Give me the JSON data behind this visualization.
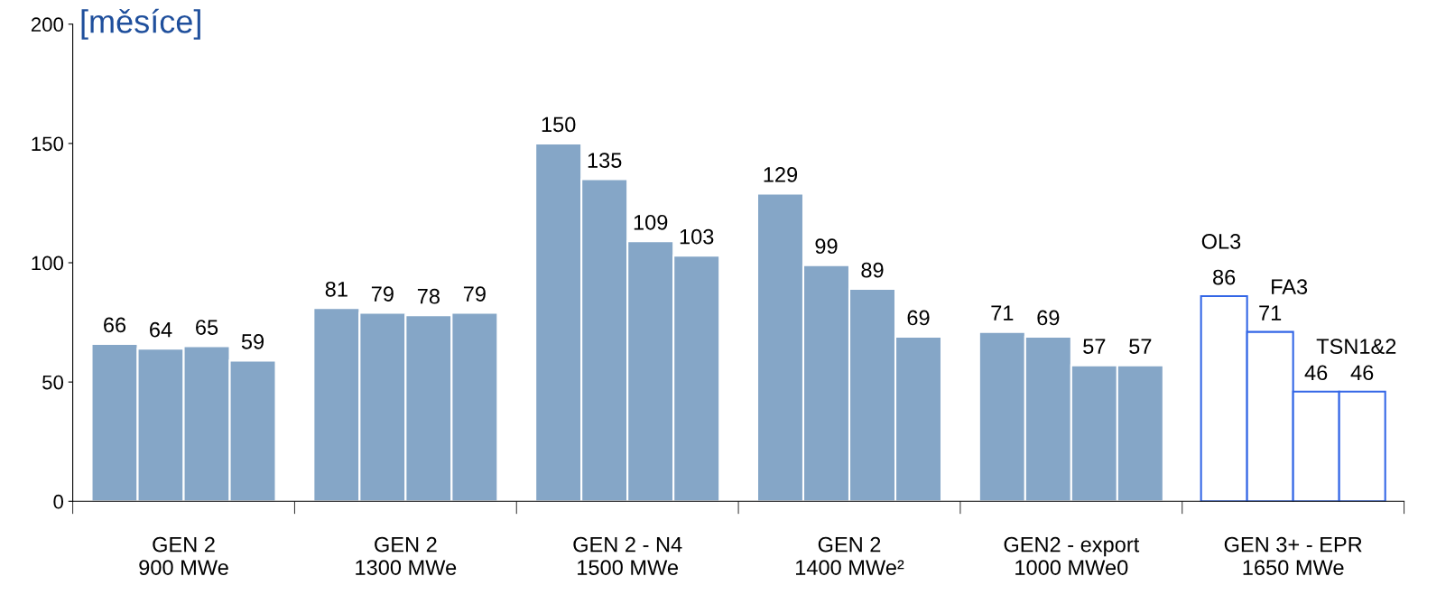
{
  "chart_data": {
    "type": "bar",
    "ylabel": "[měsíce]",
    "categories": [
      "GEN 2\n900 MWe",
      "GEN 2\n1300 MWe",
      "GEN 2 - N4\n1500 MWe",
      "GEN 2\n1400 MWe²",
      "GEN2 - export\n1000 MWe0",
      "GEN 3+ - EPR\n1650 MWe"
    ],
    "series": [
      {
        "color": "#3366e6",
        "colors": [
          "#85a6c7",
          "#85a6c7",
          "#85a6c7",
          "#85a6c7",
          "#85a6c7",
          "#ffffff"
        ],
        "values": [
          66,
          81,
          150,
          129,
          71,
          86
        ]
      },
      {
        "color": "#3366e6",
        "colors": [
          "#85a6c7",
          "#85a6c7",
          "#85a6c7",
          "#85a6c7",
          "#85a6c7",
          "#ffffff"
        ],
        "values": [
          64,
          79,
          135,
          99,
          69,
          71
        ]
      },
      {
        "color": "#3366e6",
        "colors": [
          "#85a6c7",
          "#85a6c7",
          "#85a6c7",
          "#85a6c7",
          "#85a6c7",
          "#ffffff"
        ],
        "values": [
          65,
          78,
          109,
          89,
          57,
          46
        ]
      },
      {
        "color": "#3366e6",
        "colors": [
          "#85a6c7",
          "#85a6c7",
          "#85a6c7",
          "#85a6c7",
          "#85a6c7",
          "#ffffff"
        ],
        "values": [
          59,
          79,
          103,
          69,
          57,
          46
        ]
      }
    ],
    "annotations": [
      "OL3",
      "FA3",
      "TSN1&2"
    ],
    "ylim": [
      0,
      200
    ],
    "yticks": [
      0,
      50,
      100,
      150,
      200
    ],
    "data_labels": true,
    "grid": false,
    "legend": false
  }
}
